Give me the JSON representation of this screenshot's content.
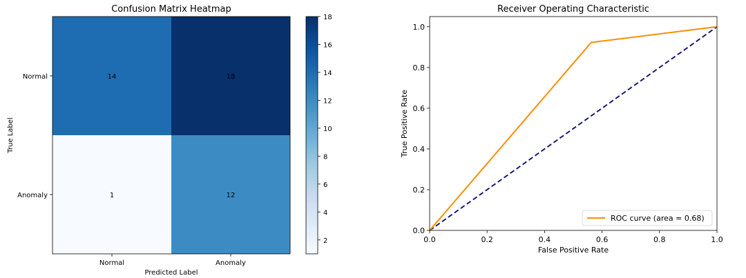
{
  "chart_data": [
    {
      "type": "heatmap",
      "title": "Confusion Matrix Heatmap",
      "xlabel": "Predicted Label",
      "ylabel": "True Label",
      "x_categories": [
        "Normal",
        "Anomaly"
      ],
      "y_categories": [
        "Normal",
        "Anomaly"
      ],
      "values": [
        [
          14,
          18
        ],
        [
          1,
          12
        ]
      ],
      "value_label_color": "#ff0000",
      "colormap": "Blues",
      "colorbar": {
        "min": 1,
        "max": 18,
        "ticks": [
          2,
          4,
          6,
          8,
          10,
          12,
          14,
          16,
          18
        ]
      }
    },
    {
      "type": "line",
      "title": "Receiver Operating Characteristic",
      "xlabel": "False Positive Rate",
      "ylabel": "True Positive Rate",
      "xlim": [
        0.0,
        1.0
      ],
      "ylim": [
        0.0,
        1.05
      ],
      "xticks": [
        "0.0",
        "0.2",
        "0.4",
        "0.6",
        "0.8",
        "1.0"
      ],
      "yticks": [
        "0.0",
        "0.2",
        "0.4",
        "0.6",
        "0.8",
        "1.0"
      ],
      "grid": false,
      "legend_position": "lower-right",
      "series": [
        {
          "name": "ROC curve (area = 0.68)",
          "color": "#ff8c00",
          "style": "solid",
          "x": [
            0.0,
            0.5625,
            1.0
          ],
          "y": [
            0.0,
            0.923,
            1.0
          ]
        },
        {
          "color": "#191970",
          "style": "dashed",
          "x": [
            0.0,
            1.0
          ],
          "y": [
            0.0,
            1.0
          ]
        }
      ]
    }
  ]
}
